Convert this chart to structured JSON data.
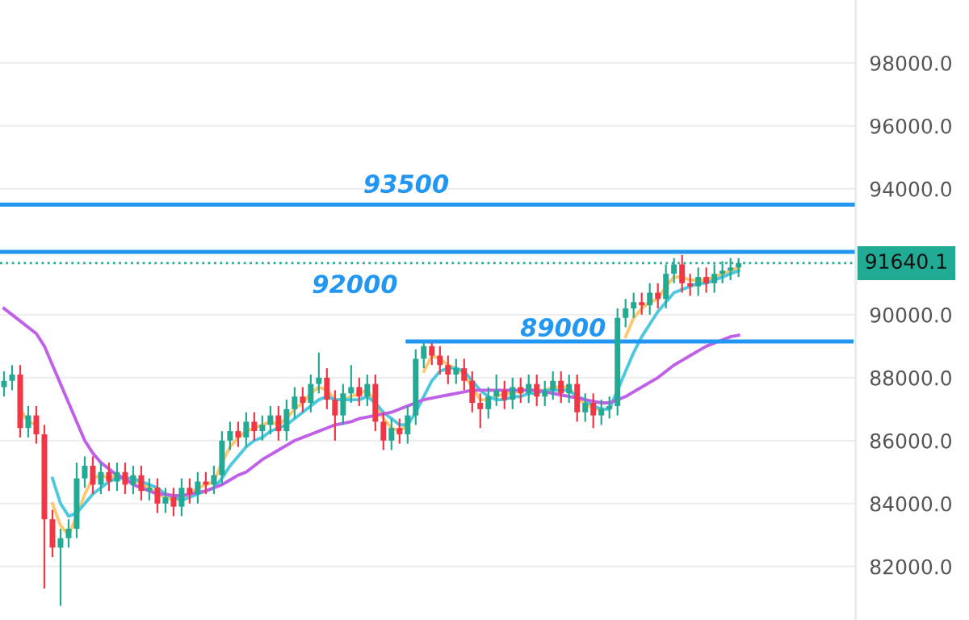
{
  "chart_data": {
    "type": "candlestick",
    "categories": [
      null,
      null,
      null,
      null,
      null,
      null,
      null,
      null,
      null,
      null,
      null,
      null,
      null,
      null,
      null,
      null,
      null,
      null,
      null,
      null,
      null,
      null,
      null,
      null,
      null,
      null,
      null,
      null,
      null,
      null,
      null,
      null,
      null,
      null,
      null,
      null,
      null,
      null,
      null,
      null,
      null,
      null,
      null,
      null,
      null,
      null,
      null,
      null,
      null,
      null,
      null,
      null,
      null,
      null,
      null,
      null,
      null,
      null,
      null,
      null,
      null,
      null,
      null,
      null,
      null,
      null,
      null,
      null,
      null,
      null,
      null,
      null,
      null,
      null,
      null,
      null,
      null,
      null,
      null,
      null,
      null,
      null,
      null,
      null,
      null,
      null,
      null,
      null,
      null,
      null,
      null,
      null,
      null,
      null,
      null,
      null,
      null,
      null,
      null,
      null,
      null,
      null,
      null,
      null,
      null,
      null
    ],
    "ohlc": [
      [
        87700,
        88200,
        87400,
        87900
      ],
      [
        87900,
        88400,
        87600,
        88100
      ],
      [
        88100,
        88400,
        86100,
        86400
      ],
      [
        86400,
        87100,
        86100,
        86800
      ],
      [
        86800,
        87100,
        85900,
        86200
      ],
      [
        86200,
        86500,
        81300,
        83500
      ],
      [
        83500,
        83800,
        82300,
        82600
      ],
      [
        82600,
        83200,
        80750,
        82900
      ],
      [
        82900,
        83500,
        82600,
        83200
      ],
      [
        83200,
        85300,
        82900,
        84800
      ],
      [
        84800,
        85500,
        84500,
        85200
      ],
      [
        85200,
        85500,
        84300,
        84600
      ],
      [
        84600,
        85300,
        84300,
        85000
      ],
      [
        85000,
        85300,
        84400,
        84700
      ],
      [
        84700,
        85300,
        84400,
        85000
      ],
      [
        85000,
        85300,
        84300,
        84600
      ],
      [
        84600,
        85200,
        84300,
        84900
      ],
      [
        84900,
        85200,
        84100,
        84400
      ],
      [
        84400,
        84800,
        84100,
        84500
      ],
      [
        84500,
        84800,
        83700,
        84000
      ],
      [
        84000,
        84500,
        83700,
        84200
      ],
      [
        84200,
        84500,
        83600,
        83900
      ],
      [
        83900,
        84800,
        83600,
        84500
      ],
      [
        84500,
        84800,
        84000,
        84300
      ],
      [
        84300,
        85000,
        84000,
        84700
      ],
      [
        84700,
        85000,
        84300,
        84600
      ],
      [
        84600,
        85200,
        84300,
        84900
      ],
      [
        84900,
        86300,
        84600,
        86000
      ],
      [
        86000,
        86600,
        85700,
        86300
      ],
      [
        86300,
        86600,
        85800,
        86100
      ],
      [
        86100,
        86900,
        85800,
        86600
      ],
      [
        86600,
        86900,
        86000,
        86300
      ],
      [
        86300,
        86800,
        86000,
        86500
      ],
      [
        86500,
        87100,
        86200,
        86800
      ],
      [
        86800,
        87100,
        86000,
        86300
      ],
      [
        86300,
        87300,
        86000,
        87000
      ],
      [
        87000,
        87700,
        86700,
        87400
      ],
      [
        87400,
        87700,
        86900,
        87200
      ],
      [
        87200,
        88100,
        86900,
        87800
      ],
      [
        87800,
        88800,
        87500,
        88000
      ],
      [
        88000,
        88300,
        87000,
        87300
      ],
      [
        87300,
        87600,
        86000,
        86800
      ],
      [
        86800,
        87800,
        86500,
        87500
      ],
      [
        87500,
        88400,
        87200,
        87700
      ],
      [
        87700,
        88000,
        87100,
        87400
      ],
      [
        87400,
        88100,
        87100,
        87800
      ],
      [
        87800,
        88100,
        86300,
        86600
      ],
      [
        86600,
        86900,
        85700,
        86000
      ],
      [
        86000,
        86700,
        85700,
        86400
      ],
      [
        86400,
        86700,
        85900,
        86200
      ],
      [
        86200,
        87100,
        85900,
        86800
      ],
      [
        86800,
        88900,
        86500,
        88600
      ],
      [
        88600,
        89100,
        88300,
        89000
      ],
      [
        89000,
        89100,
        88400,
        88700
      ],
      [
        88700,
        89000,
        88100,
        88400
      ],
      [
        88400,
        88700,
        87800,
        88100
      ],
      [
        88100,
        88600,
        87800,
        88300
      ],
      [
        88300,
        88600,
        87600,
        87900
      ],
      [
        87900,
        88200,
        86900,
        87200
      ],
      [
        87200,
        87500,
        86400,
        87000
      ],
      [
        87000,
        87700,
        86700,
        87400
      ],
      [
        87400,
        88100,
        87100,
        87600
      ],
      [
        87600,
        87900,
        87000,
        87300
      ],
      [
        87300,
        88000,
        87000,
        87700
      ],
      [
        87700,
        88000,
        87200,
        87500
      ],
      [
        87500,
        88100,
        87200,
        87800
      ],
      [
        87800,
        88100,
        87100,
        87400
      ],
      [
        87400,
        87900,
        87100,
        87600
      ],
      [
        87600,
        88200,
        87300,
        87900
      ],
      [
        87900,
        88200,
        87200,
        87500
      ],
      [
        87500,
        88100,
        87200,
        87800
      ],
      [
        87800,
        88100,
        86600,
        86900
      ],
      [
        86900,
        87500,
        86600,
        87200
      ],
      [
        87200,
        87500,
        86400,
        86800
      ],
      [
        86800,
        87300,
        86500,
        87000
      ],
      [
        87000,
        87400,
        86700,
        87100
      ],
      [
        87100,
        90200,
        86800,
        89900
      ],
      [
        89900,
        90500,
        89600,
        90200
      ],
      [
        90200,
        90700,
        89900,
        90400
      ],
      [
        90400,
        90700,
        90000,
        90300
      ],
      [
        90300,
        91000,
        90000,
        90700
      ],
      [
        90700,
        91000,
        90200,
        90500
      ],
      [
        90500,
        91600,
        90200,
        91300
      ],
      [
        91300,
        91800,
        91000,
        91600
      ],
      [
        91600,
        91900,
        90700,
        91000
      ],
      [
        91000,
        91300,
        90600,
        90900
      ],
      [
        90900,
        91500,
        90600,
        91200
      ],
      [
        91200,
        91500,
        90700,
        91000
      ],
      [
        91000,
        91600,
        90700,
        91300
      ],
      [
        91300,
        91700,
        91000,
        91400
      ],
      [
        91400,
        91800,
        91100,
        91500
      ],
      [
        91500,
        91800,
        91200,
        91640
      ],
      null,
      null,
      null,
      null,
      null,
      null,
      null,
      null,
      null,
      null,
      null,
      null,
      null,
      null
    ],
    "series": [
      {
        "type": "line",
        "color": "#ffc870",
        "values": [
          null,
          null,
          87000,
          86600,
          86500,
          null,
          84000,
          83300,
          83000,
          83600,
          84300,
          84800,
          84900,
          84800,
          84900,
          84800,
          84800,
          84600,
          84500,
          84300,
          84200,
          84100,
          84200,
          84300,
          84500,
          84600,
          84700,
          85300,
          85800,
          86100,
          86300,
          86400,
          86500,
          86600,
          86500,
          86700,
          87000,
          87200,
          87500,
          87700,
          87600,
          87300,
          87300,
          87400,
          87500,
          87600,
          87200,
          86700,
          86400,
          86300,
          86500,
          null,
          88200,
          88700,
          88600,
          88400,
          88300,
          88100,
          87700,
          87300,
          87300,
          87400,
          87500,
          87500,
          87600,
          87600,
          87600,
          87600,
          87700,
          87700,
          87700,
          87300,
          87200,
          87000,
          87000,
          null,
          null,
          89300,
          89900,
          90200,
          90400,
          90500,
          90900,
          91200,
          91200,
          91100,
          91100,
          91100,
          91200,
          91300,
          91400,
          91500,
          null,
          null,
          null,
          null,
          null,
          null,
          null,
          null,
          null,
          null,
          null,
          null,
          null,
          null
        ]
      },
      {
        "type": "line",
        "color": "#4dc8e0",
        "values": [
          null,
          null,
          null,
          null,
          null,
          null,
          84800,
          84000,
          83600,
          83700,
          84000,
          84300,
          84500,
          84700,
          84800,
          84800,
          84800,
          84700,
          84600,
          84500,
          84300,
          84200,
          84100,
          84200,
          84300,
          84400,
          84500,
          84800,
          85200,
          85500,
          85800,
          86000,
          86100,
          86300,
          86400,
          86500,
          86700,
          86900,
          87100,
          87300,
          87400,
          87300,
          87300,
          87300,
          87300,
          87400,
          87200,
          86900,
          86700,
          86500,
          86500,
          86900,
          87400,
          87900,
          88200,
          88300,
          88300,
          88200,
          87900,
          87600,
          87400,
          87300,
          87300,
          87400,
          87400,
          87500,
          87500,
          87600,
          87600,
          87600,
          87600,
          87400,
          87300,
          87100,
          87000,
          87000,
          87600,
          88200,
          88800,
          89300,
          89700,
          90100,
          90400,
          90700,
          90800,
          90900,
          91000,
          91000,
          91100,
          91200,
          91300,
          91400,
          null,
          null,
          null,
          null,
          null,
          null,
          null,
          null,
          null,
          null,
          null,
          null,
          null,
          null
        ]
      },
      {
        "type": "line",
        "color": "#c060e8",
        "values": [
          90200,
          90000,
          89800,
          89600,
          89400,
          89000,
          88400,
          87800,
          87200,
          86600,
          86000,
          85600,
          85300,
          85100,
          84900,
          84800,
          84600,
          84500,
          84400,
          84300,
          84300,
          84250,
          84250,
          84300,
          84350,
          84400,
          84500,
          84600,
          84750,
          84900,
          85000,
          85200,
          85400,
          85550,
          85700,
          85850,
          86000,
          86100,
          86200,
          86300,
          86400,
          86500,
          86550,
          86600,
          86700,
          86750,
          86800,
          86850,
          86900,
          87000,
          87100,
          87200,
          87300,
          87350,
          87400,
          87450,
          87500,
          87550,
          87600,
          87600,
          87600,
          87600,
          87600,
          87600,
          87600,
          87600,
          87600,
          87550,
          87500,
          87450,
          87400,
          87350,
          87300,
          87250,
          87200,
          87200,
          87300,
          87400,
          87550,
          87700,
          87850,
          88000,
          88200,
          88400,
          88550,
          88700,
          88850,
          89000,
          89100,
          89200,
          89300,
          89350,
          null,
          null,
          null,
          null,
          null,
          null,
          null,
          null,
          null,
          null,
          null,
          null,
          null,
          null
        ]
      },
      {
        "type": "line",
        "name": "89000",
        "color": "#2196f3",
        "values": [
          null,
          null,
          null,
          null,
          null,
          null,
          null,
          null,
          null,
          null,
          null,
          null,
          null,
          null,
          null,
          null,
          null,
          null,
          null,
          null,
          null,
          null,
          null,
          null,
          null,
          null,
          null,
          null,
          null,
          null,
          null,
          null,
          null,
          null,
          null,
          null,
          null,
          null,
          null,
          null,
          null,
          null,
          null,
          null,
          null,
          null,
          null,
          null,
          null,
          null,
          89150,
          89150,
          89150,
          89150,
          89150,
          89150,
          89150,
          89150,
          89150,
          89150,
          89150,
          89150,
          89150,
          89150,
          89150,
          89150,
          89150,
          89150,
          89150,
          89150,
          89150,
          89150,
          89150,
          89150,
          89150,
          89150,
          89150,
          89150,
          89150,
          89150,
          89150,
          89150,
          89150,
          89150,
          89150,
          89150,
          89150,
          89150,
          89150,
          89150,
          89150,
          89150,
          89150,
          89150,
          89150,
          89150,
          89150,
          89150,
          89150,
          89150,
          89150,
          89150,
          89150,
          89150,
          89150,
          89150
        ]
      }
    ],
    "ref_lines": [
      {
        "axis": "y",
        "value": 93500,
        "label": "93500",
        "color": "#2196f3",
        "line_style": "solid"
      },
      {
        "axis": "y",
        "value": 92000,
        "label": "92000",
        "color": "#2196f3",
        "line_style": "solid"
      },
      {
        "axis": "y",
        "value": 91640.1,
        "label": "91640.1",
        "color": "#22ab94",
        "line_style": "dotted"
      }
    ],
    "ylim": [
      80300,
      100000
    ],
    "yticks": [
      {
        "value": 82000,
        "label": "82000.0"
      },
      {
        "value": 84000,
        "label": "84000.0"
      },
      {
        "value": 86000,
        "label": "86000.0"
      },
      {
        "value": 88000,
        "label": "88000.0"
      },
      {
        "value": 90000,
        "label": "90000.0"
      },
      {
        "value": 92000,
        "label": null
      },
      {
        "value": 94000,
        "label": "94000.0"
      },
      {
        "value": 96000,
        "label": "96000.0"
      },
      {
        "value": 98000,
        "label": "98000.0"
      }
    ],
    "grid": "y"
  }
}
